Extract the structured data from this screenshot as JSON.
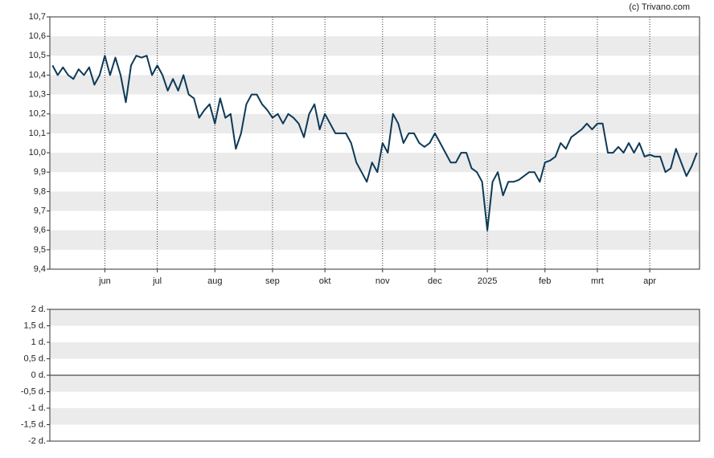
{
  "chart_data": [
    {
      "type": "line",
      "watermark": "(c) Trivano.com",
      "color": "#0d3a58",
      "categories": [
        null,
        null,
        null,
        null,
        null,
        null,
        null,
        null,
        null,
        null,
        "jun",
        null,
        null,
        null,
        null,
        null,
        null,
        null,
        null,
        null,
        "jul",
        null,
        null,
        null,
        null,
        null,
        null,
        null,
        null,
        null,
        null,
        "aug",
        null,
        null,
        null,
        null,
        null,
        null,
        null,
        null,
        null,
        null,
        "sep",
        null,
        null,
        null,
        null,
        null,
        null,
        null,
        null,
        null,
        "okt",
        null,
        null,
        null,
        null,
        null,
        null,
        null,
        null,
        null,
        null,
        "nov",
        null,
        null,
        null,
        null,
        null,
        null,
        null,
        null,
        null,
        "dec",
        null,
        null,
        null,
        null,
        null,
        null,
        null,
        null,
        null,
        "2025",
        null,
        null,
        null,
        null,
        null,
        null,
        null,
        null,
        null,
        null,
        "feb",
        null,
        null,
        null,
        null,
        null,
        null,
        null,
        null,
        null,
        "mrt",
        null,
        null,
        null,
        null,
        null,
        null,
        null,
        null,
        null,
        "apr",
        null,
        null,
        null,
        null,
        null,
        null,
        null,
        null,
        null
      ],
      "values": [
        10.45,
        10.4,
        10.44,
        10.4,
        10.38,
        10.43,
        10.4,
        10.44,
        10.35,
        10.4,
        10.5,
        10.4,
        10.49,
        10.4,
        10.26,
        10.45,
        10.5,
        10.49,
        10.5,
        10.4,
        10.45,
        10.4,
        10.32,
        10.38,
        10.32,
        10.4,
        10.3,
        10.28,
        10.18,
        10.22,
        10.25,
        10.15,
        10.28,
        10.18,
        10.2,
        10.02,
        10.1,
        10.25,
        10.3,
        10.3,
        10.25,
        10.22,
        10.18,
        10.2,
        10.15,
        10.2,
        10.18,
        10.15,
        10.08,
        10.2,
        10.25,
        10.12,
        10.2,
        10.15,
        10.1,
        10.1,
        10.1,
        10.05,
        9.95,
        9.9,
        9.85,
        9.95,
        9.9,
        10.05,
        10.0,
        10.2,
        10.15,
        10.05,
        10.1,
        10.1,
        10.05,
        10.03,
        10.05,
        10.1,
        10.05,
        10.0,
        9.95,
        9.95,
        10.0,
        10.0,
        9.92,
        9.9,
        9.85,
        9.6,
        9.85,
        9.9,
        9.78,
        9.85,
        9.85,
        9.86,
        9.88,
        9.9,
        9.9,
        9.85,
        9.95,
        9.96,
        9.98,
        10.05,
        10.02,
        10.08,
        10.1,
        10.12,
        10.15,
        10.12,
        10.15,
        10.15,
        10.0,
        10.0,
        10.03,
        10.0,
        10.05,
        10.0,
        10.05,
        9.98,
        9.99,
        9.98,
        9.98,
        9.9,
        9.92,
        10.02,
        9.95,
        9.88,
        9.93,
        10.0
      ],
      "ylim": [
        9.4,
        10.7
      ],
      "yticks": [
        {
          "value": 9.4,
          "label": "9,4"
        },
        {
          "value": 9.5,
          "label": "9,5"
        },
        {
          "value": 9.6,
          "label": "9,6"
        },
        {
          "value": 9.7,
          "label": "9,7"
        },
        {
          "value": 9.8,
          "label": "9,8"
        },
        {
          "value": 9.9,
          "label": "9,9"
        },
        {
          "value": 10.0,
          "label": "10,0"
        },
        {
          "value": 10.1,
          "label": "10,1"
        },
        {
          "value": 10.2,
          "label": "10,2"
        },
        {
          "value": 10.3,
          "label": "10,3"
        },
        {
          "value": 10.4,
          "label": "10,4"
        },
        {
          "value": 10.5,
          "label": "10,5"
        },
        {
          "value": 10.6,
          "label": "10,6"
        },
        {
          "value": 10.7,
          "label": "10,7"
        }
      ],
      "grid": true
    },
    {
      "type": "bar",
      "ylim": [
        -2,
        2
      ],
      "yticks": [
        {
          "value": -2,
          "label": "-2 d."
        },
        {
          "value": -1.5,
          "label": "-1,5 d."
        },
        {
          "value": -1,
          "label": "-1 d."
        },
        {
          "value": -0.5,
          "label": "-0,5 d."
        },
        {
          "value": 0,
          "label": "0 d."
        },
        {
          "value": 0.5,
          "label": "0,5 d."
        },
        {
          "value": 1,
          "label": "1 d."
        },
        {
          "value": 1.5,
          "label": "1,5 d."
        },
        {
          "value": 2,
          "label": "2 d."
        }
      ],
      "grid": true
    }
  ]
}
